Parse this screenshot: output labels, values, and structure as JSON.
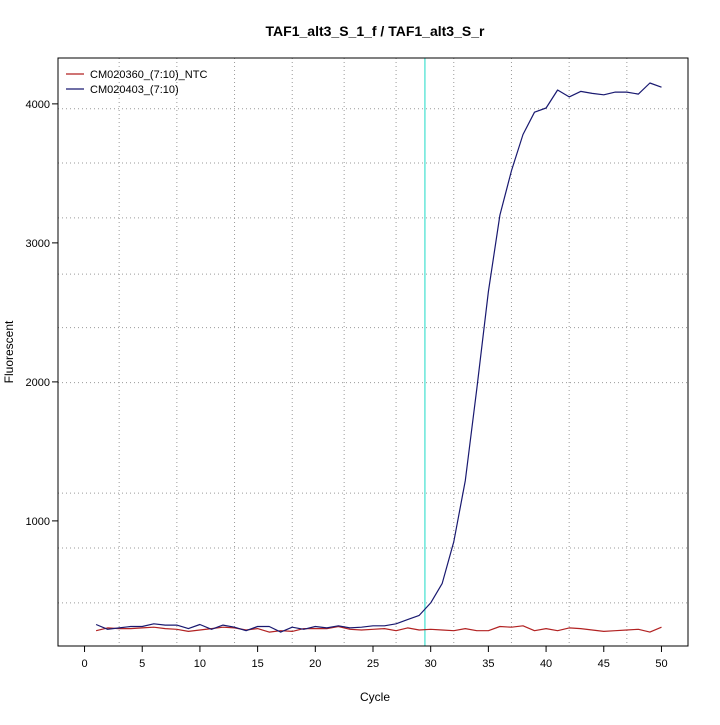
{
  "chart_data": {
    "type": "line",
    "title": "TAF1_alt3_S_1_f / TAF1_alt3_S_r",
    "xlabel": "Cycle",
    "ylabel": "Fluorescent",
    "xlim": [
      -2.3,
      52.3
    ],
    "ylim": [
      100,
      4330
    ],
    "x_ticks": [
      0,
      5,
      10,
      15,
      20,
      25,
      30,
      35,
      40,
      45,
      50
    ],
    "y_ticks": [
      1000,
      2000,
      3000,
      4000
    ],
    "grid": true,
    "grid_x": [
      3,
      8,
      13,
      18,
      22.5,
      27,
      32,
      37,
      42,
      47
    ],
    "grid_y": [
      410,
      805,
      1200,
      1995,
      2390,
      2775,
      3180,
      3575,
      3965
    ],
    "threshold_x": 29.5,
    "threshold_color": "#40e0d0",
    "legend_position": "top-left",
    "x": [
      1,
      2,
      3,
      4,
      5,
      6,
      7,
      8,
      9,
      10,
      11,
      12,
      13,
      14,
      15,
      16,
      17,
      18,
      19,
      20,
      21,
      22,
      23,
      24,
      25,
      26,
      27,
      28,
      29,
      30,
      31,
      32,
      33,
      34,
      35,
      36,
      37,
      38,
      39,
      40,
      41,
      42,
      43,
      44,
      45,
      46,
      47,
      48,
      49,
      50
    ],
    "series": [
      {
        "name": "CM020360_(7:10)_NTC",
        "color": "#b22222",
        "values": [
          210,
          230,
          225,
          225,
          230,
          235,
          225,
          220,
          205,
          215,
          225,
          235,
          230,
          215,
          225,
          200,
          210,
          205,
          225,
          225,
          225,
          240,
          220,
          215,
          220,
          225,
          210,
          230,
          215,
          220,
          215,
          210,
          225,
          210,
          210,
          240,
          235,
          245,
          210,
          225,
          210,
          230,
          225,
          215,
          205,
          210,
          215,
          220,
          200,
          235
        ]
      },
      {
        "name": "CM020403_(7:10)",
        "color": "#191970",
        "values": [
          255,
          220,
          230,
          240,
          240,
          260,
          250,
          250,
          225,
          255,
          220,
          250,
          235,
          210,
          240,
          240,
          200,
          235,
          220,
          240,
          230,
          245,
          230,
          235,
          245,
          245,
          260,
          290,
          320,
          410,
          550,
          850,
          1290,
          1950,
          2650,
          3200,
          3520,
          3780,
          3940,
          3970,
          4100,
          4050,
          4090,
          4075,
          4065,
          4085,
          4085,
          4070,
          4150,
          4120
        ]
      }
    ]
  }
}
